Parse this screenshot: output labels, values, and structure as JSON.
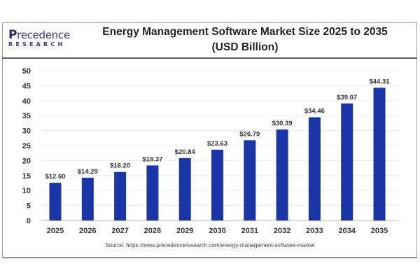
{
  "logo": {
    "top": "recedence",
    "initial": "P",
    "bottom": "RESEARCH"
  },
  "title_line1": "Energy Management Software Market Size 2025 to 2035",
  "title_line2": "(USD Billion)",
  "source": "Source: https://www.precedenceresearch.com/energy-management-software-market",
  "colors": {
    "bar": "#1a35a8",
    "grid": "#eeeeee",
    "axis": "#cccccc"
  },
  "chart_data": {
    "type": "bar",
    "title": "Energy Management Software Market Size 2025 to 2035 (USD Billion)",
    "xlabel": "",
    "ylabel": "",
    "categories": [
      "2025",
      "2026",
      "2027",
      "2028",
      "2029",
      "2030",
      "2031",
      "2032",
      "2033",
      "2034",
      "2035"
    ],
    "values": [
      12.6,
      14.29,
      16.2,
      18.37,
      20.84,
      23.63,
      26.79,
      30.39,
      34.46,
      39.07,
      44.31
    ],
    "data_labels": [
      "$12.60",
      "$14.29",
      "$16.20",
      "$18.37",
      "$20.84",
      "$23.63",
      "$26.79",
      "$30.39",
      "$34.46",
      "$39.07",
      "$44.31"
    ],
    "ylim": [
      0,
      50
    ],
    "yticks": [
      0,
      5,
      10,
      15,
      20,
      25,
      30,
      35,
      40,
      45,
      50
    ],
    "grid": true,
    "legend": "none"
  }
}
